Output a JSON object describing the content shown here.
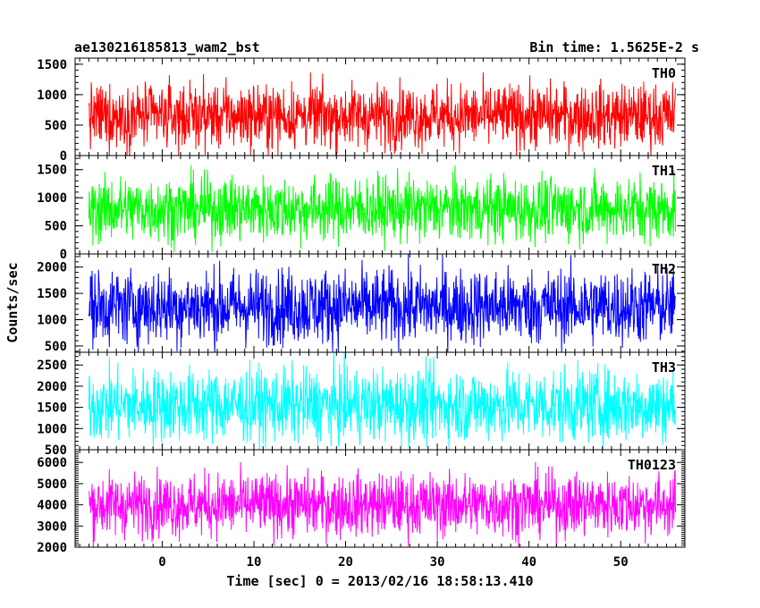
{
  "header": {
    "title": "ae130216185813_wam2_bst",
    "bin_time": "Bin time: 1.5625E-2 s"
  },
  "chart_data": {
    "type": "line",
    "title": "ae130216185813_wam2_bst",
    "subtitle": "Bin time: 1.5625E-2 s",
    "xlabel": "Time [sec] 0 = 2013/02/16 18:58:13.410",
    "ylabel": "Counts/sec",
    "xlim": [
      -9.5,
      57
    ],
    "data_x_range": [
      -8,
      56
    ],
    "x_ticks": [
      0,
      10,
      20,
      30,
      40,
      50
    ],
    "grid": false,
    "legend": "panel labels top-right",
    "panels": [
      {
        "name": "TH0",
        "color": "#ff0000",
        "ylim": [
          0,
          1600
        ],
        "y_ticks": [
          0,
          500,
          1000,
          1500
        ],
        "typical_range": [
          150,
          1250
        ],
        "mean": 650
      },
      {
        "name": "TH1",
        "color": "#00ff00",
        "ylim": [
          0,
          1750
        ],
        "y_ticks": [
          0,
          500,
          1000,
          1500
        ],
        "typical_range": [
          250,
          1450
        ],
        "mean": 800
      },
      {
        "name": "TH2",
        "color": "#0000ff",
        "ylim": [
          380,
          2250
        ],
        "y_ticks": [
          500,
          1000,
          1500,
          2000
        ],
        "typical_range": [
          550,
          2050
        ],
        "mean": 1250
      },
      {
        "name": "TH3",
        "color": "#00ffff",
        "ylim": [
          500,
          2800
        ],
        "y_ticks": [
          500,
          1000,
          1500,
          2000,
          2500
        ],
        "typical_range": [
          750,
          2550
        ],
        "mean": 1550
      },
      {
        "name": "TH0123",
        "color": "#ff00ff",
        "ylim": [
          2000,
          6600
        ],
        "y_ticks": [
          2000,
          3000,
          4000,
          5000,
          6000
        ],
        "typical_range": [
          2700,
          5800
        ],
        "mean": 4000
      }
    ]
  }
}
